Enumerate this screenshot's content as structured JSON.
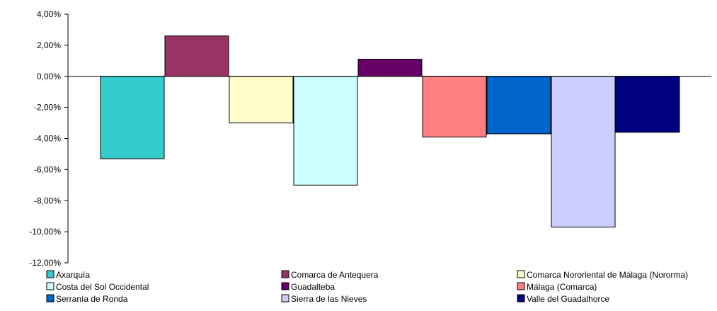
{
  "chart_data": {
    "type": "bar",
    "title": "",
    "xlabel": "",
    "ylabel": "",
    "ylim": [
      -12,
      4
    ],
    "ytick_step": 2,
    "y_ticks": [
      "4,00%",
      "2,00%",
      "0,00%",
      "-2,00%",
      "-4,00%",
      "-6,00%",
      "-8,00%",
      "-10,00%",
      "-12,00%"
    ],
    "grid": false,
    "legend_position": "bottom",
    "series": [
      {
        "name": "Axarquía",
        "value": -5.3,
        "color": "#33CCCC"
      },
      {
        "name": "Comarca de Antequera",
        "value": 2.6,
        "color": "#993366"
      },
      {
        "name": "Comarca Nororiental de Málaga (Nororma)",
        "value": -3.0,
        "color": "#FFFFCC"
      },
      {
        "name": "Costa del Sol Occidental",
        "value": -7.0,
        "color": "#CCFFFF"
      },
      {
        "name": "Guadalteba",
        "value": 1.1,
        "color": "#660066"
      },
      {
        "name": "Málaga (Comarca)",
        "value": -3.9,
        "color": "#FF8080"
      },
      {
        "name": "Serranía de Ronda",
        "value": -3.7,
        "color": "#0066CC"
      },
      {
        "name": "Sierra de las Nieves",
        "value": -9.7,
        "color": "#CCCCFF"
      },
      {
        "name": "Valle del Guadalhorce",
        "value": -3.6,
        "color": "#000080"
      }
    ]
  }
}
